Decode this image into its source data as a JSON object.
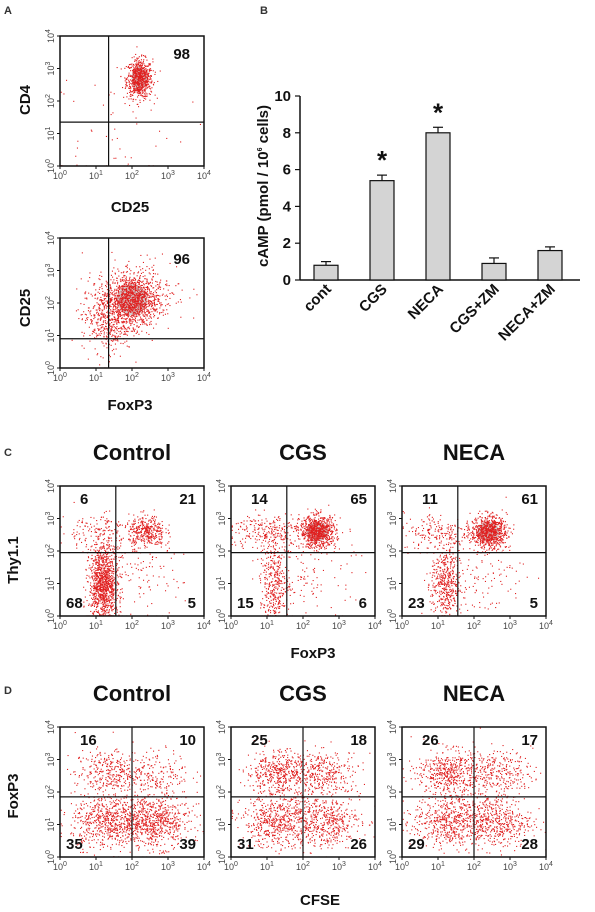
{
  "chart_data": [
    {
      "type": "scatter",
      "panel": "A",
      "ylabel": "CD4",
      "xlabel": "CD25",
      "quadrant_labels": {
        "UR": "98"
      },
      "axis_ticks": [
        "0",
        "1",
        "2",
        "3",
        "4"
      ]
    },
    {
      "type": "scatter",
      "panel": "A",
      "ylabel": "CD25",
      "xlabel": "FoxP3",
      "quadrant_labels": {
        "UR": "96"
      },
      "axis_ticks": [
        "0",
        "1",
        "2",
        "3",
        "4"
      ]
    },
    {
      "type": "bar",
      "panel": "B",
      "categories": [
        "cont",
        "CGS",
        "NECA",
        "CGS+ZM",
        "NECA+ZM"
      ],
      "values": [
        0.8,
        5.4,
        8.0,
        0.9,
        1.6
      ],
      "errors": [
        0.2,
        0.3,
        0.3,
        0.3,
        0.2
      ],
      "significance": [
        "",
        "*",
        "*",
        "",
        ""
      ],
      "ylabel_main": "cAMP (pmol / 10",
      "ylabel_sup": "6",
      "ylabel_end": " cells)",
      "ylim": [
        0,
        10
      ],
      "yticks": [
        "0",
        "2",
        "4",
        "6",
        "8",
        "10"
      ],
      "bar_color": "#d4d4d4"
    },
    {
      "type": "scatter",
      "panel": "C",
      "groups": [
        "Control",
        "CGS",
        "NECA"
      ],
      "ylabel": "Thy1.1",
      "xlabel": "FoxP3",
      "quadrants": [
        {
          "UL": "6",
          "UR": "21",
          "LL": "68",
          "LR": "5"
        },
        {
          "UL": "14",
          "UR": "65",
          "LL": "15",
          "LR": "6"
        },
        {
          "UL": "11",
          "UR": "61",
          "LL": "23",
          "LR": "5"
        }
      ]
    },
    {
      "type": "scatter",
      "panel": "D",
      "groups": [
        "Control",
        "CGS",
        "NECA"
      ],
      "ylabel": "FoxP3",
      "xlabel": "CFSE",
      "quadrants": [
        {
          "UL": "16",
          "UR": "10",
          "LL": "35",
          "LR": "39"
        },
        {
          "UL": "25",
          "UR": "18",
          "LL": "31",
          "LR": "26"
        },
        {
          "UL": "26",
          "UR": "17",
          "LL": "29",
          "LR": "28"
        }
      ]
    }
  ],
  "panel_letters": [
    "A",
    "B",
    "C",
    "D"
  ],
  "tick_base": "10",
  "colors": {
    "dots": "#e02020",
    "density": "#c8c8c8",
    "axis": "#111111"
  }
}
